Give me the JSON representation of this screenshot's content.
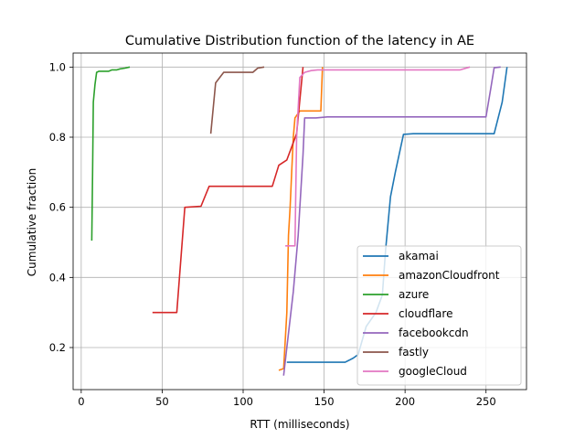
{
  "chart_data": {
    "type": "line",
    "title": "Cumulative Distribution function of the latency in AE",
    "xlabel": "RTT (milliseconds)",
    "ylabel": "Cumulative fraction",
    "xlim": [
      -5,
      275
    ],
    "ylim": [
      0.08,
      1.04
    ],
    "xticks": [
      0,
      50,
      100,
      150,
      200,
      250
    ],
    "yticks": [
      0.2,
      0.4,
      0.6,
      0.8,
      1.0
    ],
    "xtick_labels": [
      "0",
      "50",
      "100",
      "150",
      "200",
      "250"
    ],
    "ytick_labels": [
      "0.2",
      "0.4",
      "0.6",
      "0.8",
      "1.0"
    ],
    "grid": true,
    "legend_position": "lower-right",
    "series": [
      {
        "name": "akamai",
        "color": "#1f77b4",
        "points": [
          [
            127,
            0.158
          ],
          [
            163,
            0.158
          ],
          [
            168,
            0.17
          ],
          [
            171,
            0.18
          ],
          [
            176,
            0.26
          ],
          [
            182,
            0.3
          ],
          [
            186,
            0.35
          ],
          [
            188,
            0.48
          ],
          [
            191,
            0.63
          ],
          [
            194,
            0.7
          ],
          [
            199,
            0.808
          ],
          [
            205,
            0.81
          ],
          [
            255,
            0.81
          ],
          [
            260,
            0.9
          ],
          [
            263,
            1.0
          ]
        ]
      },
      {
        "name": "amazonCloudfront",
        "color": "#ff7f0e",
        "points": [
          [
            122,
            0.135
          ],
          [
            125,
            0.14
          ],
          [
            127,
            0.3
          ],
          [
            128,
            0.52
          ],
          [
            129,
            0.6
          ],
          [
            130,
            0.7
          ],
          [
            131,
            0.8
          ],
          [
            132,
            0.855
          ],
          [
            135,
            0.875
          ],
          [
            148,
            0.875
          ],
          [
            149,
            1.0
          ]
        ]
      },
      {
        "name": "azure",
        "color": "#2ca02c",
        "points": [
          [
            6.5,
            0.505
          ],
          [
            7,
            0.7
          ],
          [
            7.5,
            0.9
          ],
          [
            8.5,
            0.95
          ],
          [
            9.5,
            0.985
          ],
          [
            11,
            0.988
          ],
          [
            17,
            0.988
          ],
          [
            19,
            0.992
          ],
          [
            22,
            0.992
          ],
          [
            24,
            0.995
          ],
          [
            27,
            0.997
          ],
          [
            30,
            1.0
          ]
        ]
      },
      {
        "name": "cloudflare",
        "color": "#d62728",
        "points": [
          [
            44,
            0.3
          ],
          [
            59,
            0.3
          ],
          [
            64,
            0.6
          ],
          [
            74,
            0.603
          ],
          [
            79,
            0.66
          ],
          [
            118,
            0.66
          ],
          [
            122,
            0.72
          ],
          [
            127,
            0.735
          ],
          [
            133,
            0.81
          ],
          [
            137,
            1.0
          ]
        ]
      },
      {
        "name": "facebookcdn",
        "color": "#9467bd",
        "points": [
          [
            125,
            0.12
          ],
          [
            127,
            0.2
          ],
          [
            131,
            0.36
          ],
          [
            134,
            0.52
          ],
          [
            137,
            0.75
          ],
          [
            138,
            0.855
          ],
          [
            145,
            0.855
          ],
          [
            152,
            0.858
          ],
          [
            250,
            0.858
          ],
          [
            253,
            0.94
          ],
          [
            255,
            0.998
          ],
          [
            259,
            1.0
          ]
        ]
      },
      {
        "name": "fastly",
        "color": "#8c564b",
        "points": [
          [
            80,
            0.81
          ],
          [
            83,
            0.955
          ],
          [
            88,
            0.985
          ],
          [
            106,
            0.985
          ],
          [
            109,
            0.997
          ],
          [
            113,
            1.0
          ]
        ]
      },
      {
        "name": "googleCloud",
        "color": "#e377c2",
        "points": [
          [
            126,
            0.49
          ],
          [
            132,
            0.49
          ],
          [
            133,
            0.8
          ],
          [
            135,
            0.97
          ],
          [
            138,
            0.985
          ],
          [
            142,
            0.99
          ],
          [
            146,
            0.992
          ],
          [
            234,
            0.992
          ],
          [
            240,
            1.0
          ]
        ]
      }
    ]
  }
}
